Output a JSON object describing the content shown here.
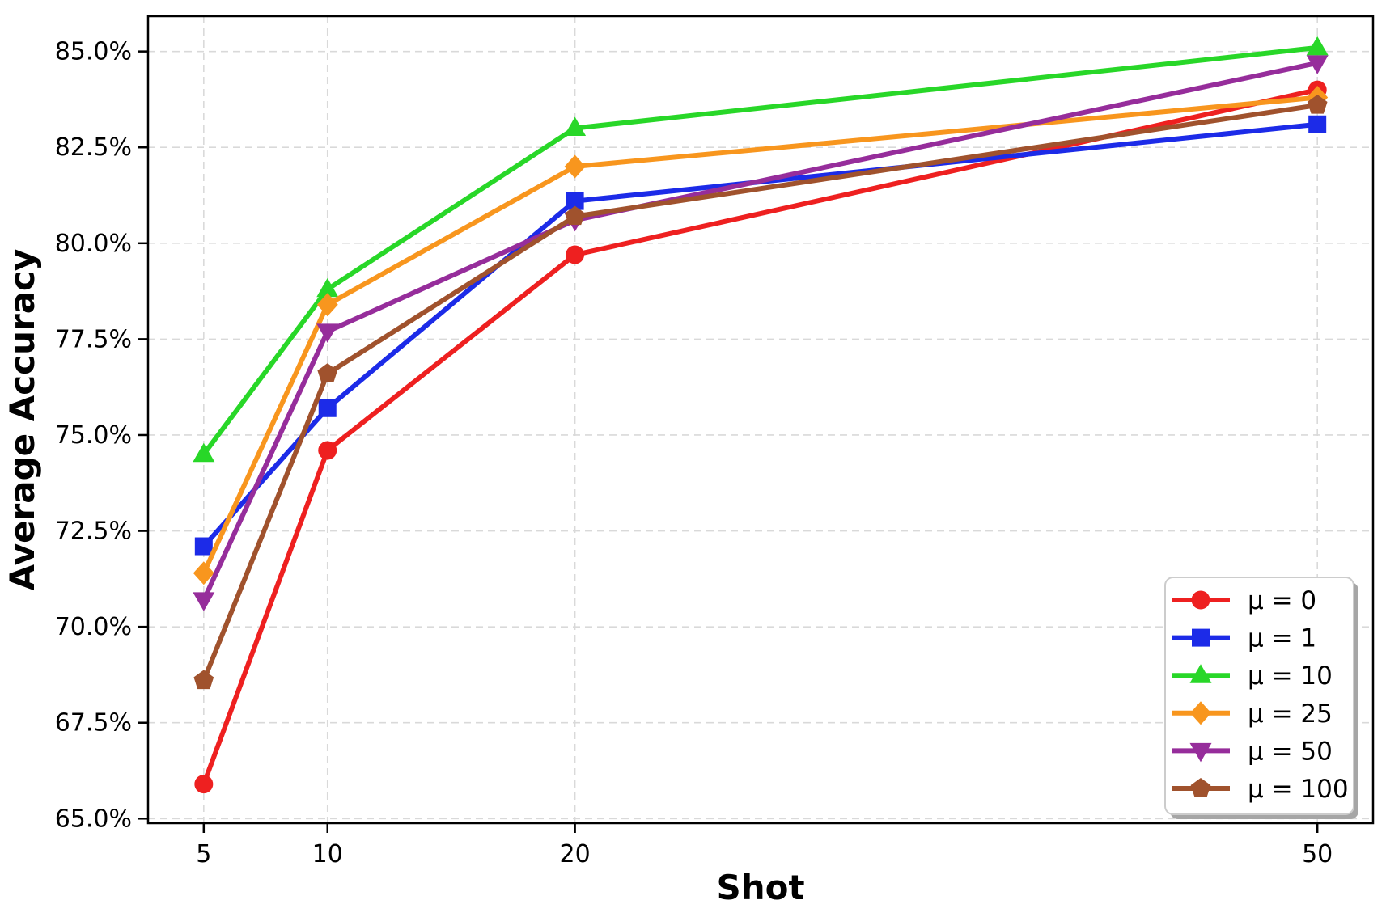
{
  "figure": {
    "background": "#ffffff",
    "axis_color": "#000000",
    "grid_color": "#d9d9d9"
  },
  "chart_data": {
    "type": "line",
    "title": "",
    "xlabel": "Shot",
    "ylabel": "Average Accuracy",
    "x": [
      5,
      10,
      20,
      50
    ],
    "x_tick_labels": [
      "5",
      "10",
      "20",
      "50"
    ],
    "y_ticks": [
      65.0,
      67.5,
      70.0,
      72.5,
      75.0,
      77.5,
      80.0,
      82.5,
      85.0
    ],
    "y_tick_labels": [
      "65.0%",
      "67.5%",
      "70.0%",
      "72.5%",
      "75.0%",
      "77.5%",
      "80.0%",
      "82.5%",
      "85.0%"
    ],
    "xlim": [
      2.75,
      52.25
    ],
    "ylim": [
      64.88,
      85.92
    ],
    "grid": true,
    "legend_position": "lower right",
    "series": [
      {
        "name": "μ = 0",
        "color": "#ee2020",
        "marker": "circle",
        "values": [
          65.9,
          74.6,
          79.7,
          84.0
        ]
      },
      {
        "name": "μ = 1",
        "color": "#1c2be8",
        "marker": "square",
        "values": [
          72.1,
          75.7,
          81.1,
          83.1
        ]
      },
      {
        "name": "μ = 10",
        "color": "#28d728",
        "marker": "triangle-up",
        "values": [
          74.5,
          78.8,
          83.0,
          85.1
        ]
      },
      {
        "name": "μ = 25",
        "color": "#f8961e",
        "marker": "diamond",
        "values": [
          71.4,
          78.4,
          82.0,
          83.8
        ]
      },
      {
        "name": "μ = 50",
        "color": "#962d9b",
        "marker": "triangle-down",
        "values": [
          70.7,
          77.7,
          80.6,
          84.7
        ]
      },
      {
        "name": "μ = 100",
        "color": "#a0522d",
        "marker": "pentagon",
        "values": [
          68.6,
          76.6,
          80.7,
          83.6
        ]
      }
    ]
  }
}
